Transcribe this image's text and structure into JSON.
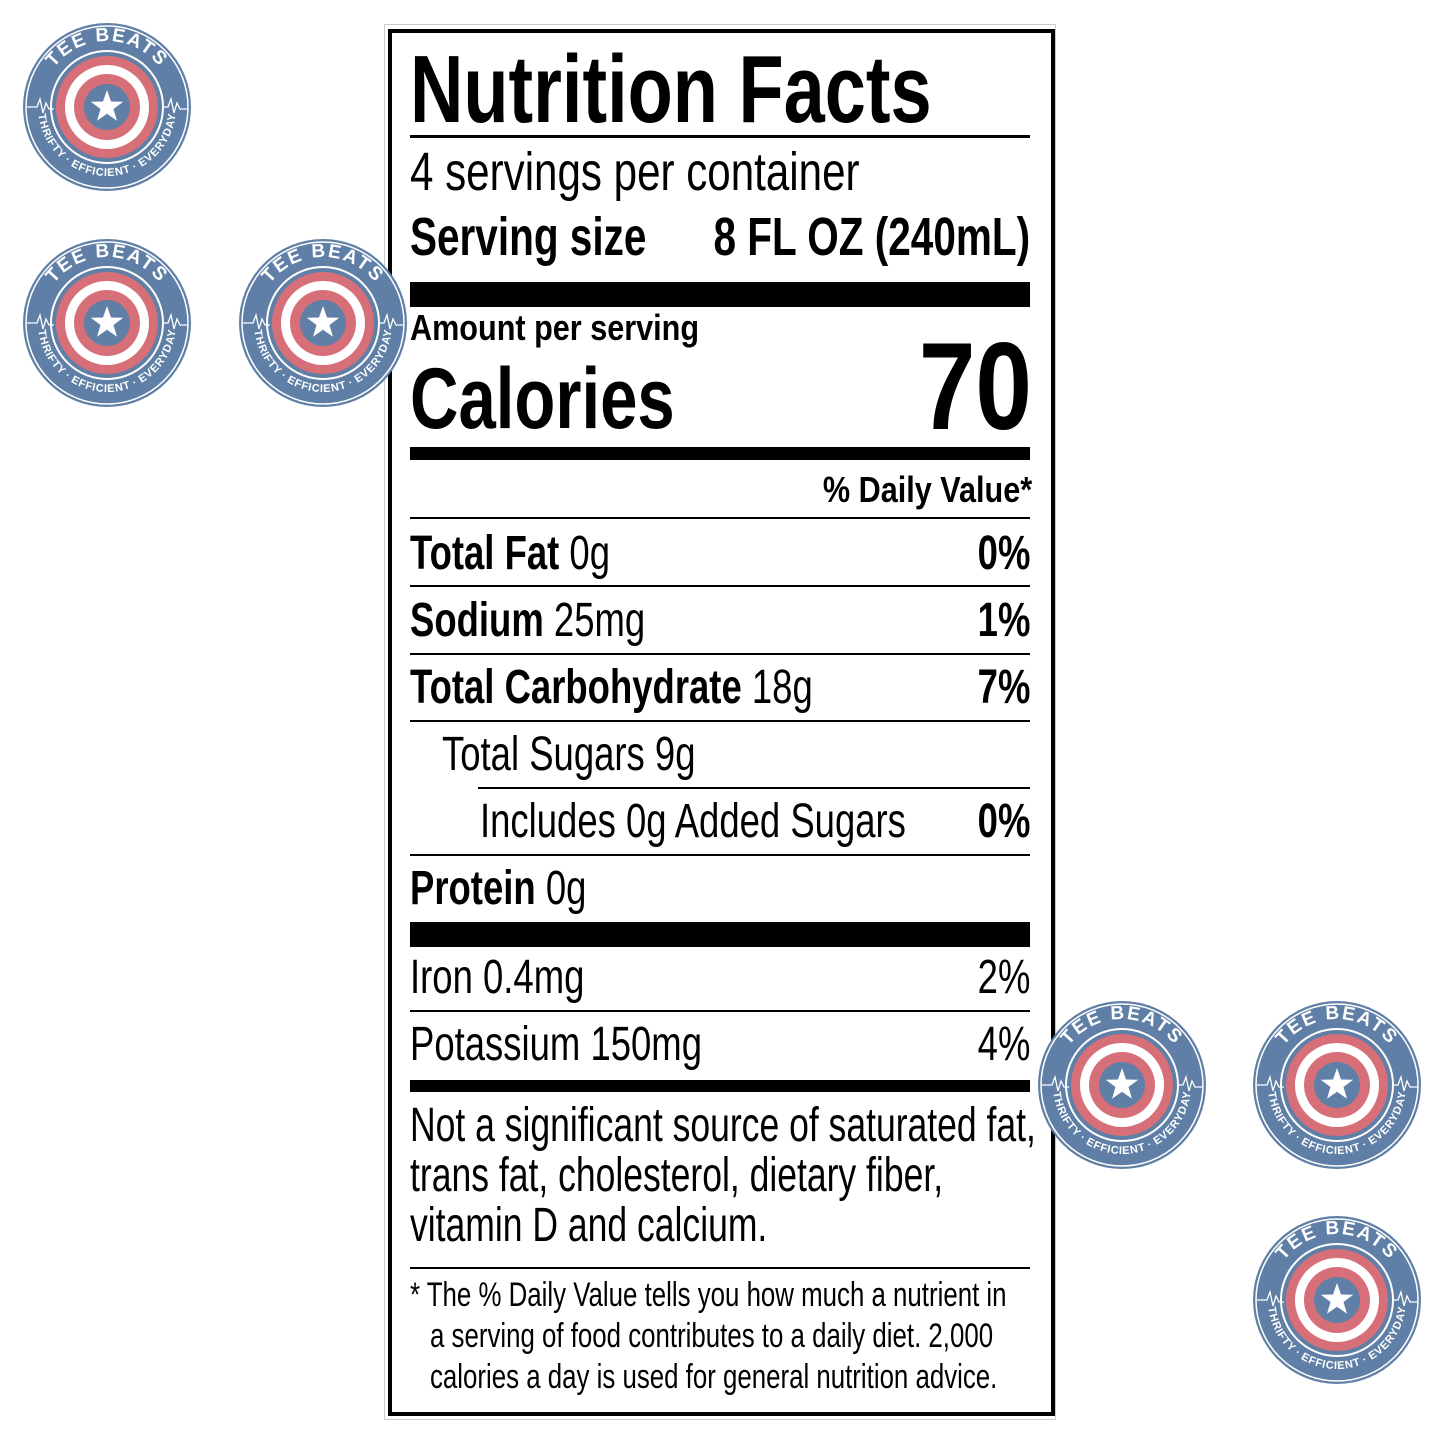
{
  "label": {
    "title": "Nutrition Facts",
    "servings": "4 servings per container",
    "serving_size_label": "Serving size",
    "serving_size_value": "8 FL OZ (240mL)",
    "amount_per_serving": "Amount per serving",
    "calories_label": "Calories",
    "calories_value": "70",
    "dv_header": "% Daily Value*",
    "nutrients": [
      {
        "name": "Total Fat",
        "amount": "0g",
        "dv": "0%"
      },
      {
        "name": "Sodium",
        "amount": "25mg",
        "dv": "1%"
      },
      {
        "name": "Total Carbohydrate",
        "amount": "18g",
        "dv": "7%"
      },
      {
        "name": "Total Sugars 9g"
      },
      {
        "name": "Includes 0g Added Sugars",
        "dv": "0%"
      },
      {
        "name": "Protein",
        "amount": "0g"
      }
    ],
    "minerals": [
      {
        "name": "Iron 0.4mg",
        "dv": "2%"
      },
      {
        "name": "Potassium 150mg",
        "dv": "4%"
      }
    ],
    "note_lines": [
      "Not a significant source of saturated fat,",
      "trans fat, cholesterol, dietary fiber,",
      "vitamin D and calcium."
    ],
    "footnote_lines": [
      "* The % Daily Value tells you how much a nutrient in",
      "a serving of food contributes to a daily diet. 2,000",
      "calories a day is used for general nutrition advice."
    ]
  },
  "watermark": {
    "top_text": "TEE BEATS",
    "bottom_text": "THRIFTY · EFFICIENT · EVERYDAY",
    "colors": {
      "blue": "#5f7fa6",
      "red": "#d66f78"
    }
  }
}
